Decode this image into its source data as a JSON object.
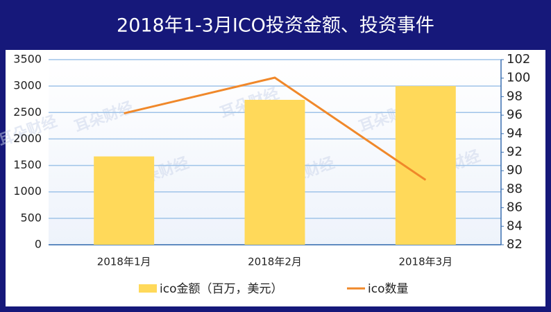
{
  "chart_data": {
    "type": "bar",
    "title": "2018年1-3月ICO投资金额、投资事件",
    "watermark": "耳朵财经",
    "categories": [
      "2018年1月",
      "2018年2月",
      "2018年3月"
    ],
    "series": [
      {
        "name": "ico金额（百万，美元）",
        "type": "bar",
        "color": "#ffd95a",
        "values": [
          1670,
          2740,
          3000
        ]
      },
      {
        "name": "ico数量",
        "type": "line",
        "axis": "y2",
        "color": "#f0882a",
        "values": [
          96.2,
          100.05,
          89
        ]
      }
    ],
    "ylim": [
      0,
      3500
    ],
    "yticks": [
      0,
      500,
      1000,
      1500,
      2000,
      2500,
      3000,
      3500
    ],
    "y2lim": [
      82,
      102
    ],
    "y2ticks": [
      82,
      84,
      86,
      88,
      90,
      92,
      94,
      96,
      98,
      100,
      102
    ],
    "grid": true,
    "legend": "bottom"
  }
}
